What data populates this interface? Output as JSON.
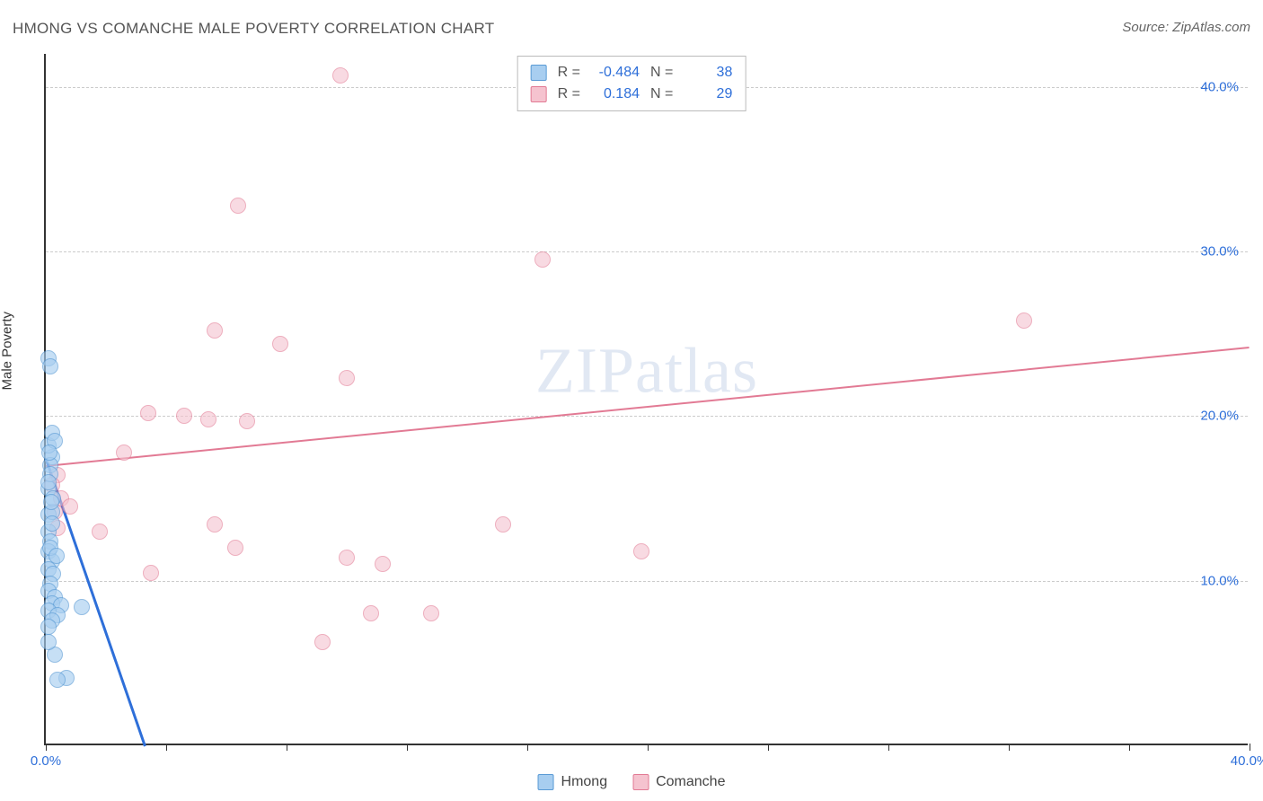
{
  "title": "HMONG VS COMANCHE MALE POVERTY CORRELATION CHART",
  "source_label": "Source:",
  "source_name": "ZipAtlas.com",
  "y_axis_label": "Male Poverty",
  "watermark_zip": "ZIP",
  "watermark_atlas": "atlas",
  "chart": {
    "type": "scatter",
    "background_color": "#ffffff",
    "grid_color": "#cccccc",
    "axis_color": "#333333",
    "tick_label_color": "#2e6fd9",
    "xlim": [
      0,
      40
    ],
    "ylim": [
      0,
      42
    ],
    "y_ticks": [
      10,
      20,
      30,
      40
    ],
    "y_tick_labels": [
      "10.0%",
      "20.0%",
      "30.0%",
      "40.0%"
    ],
    "x_ticks": [
      0,
      4,
      8,
      12,
      16,
      20,
      24,
      28,
      32,
      36,
      40
    ],
    "x_first_label": "0.0%",
    "x_last_label": "40.0%",
    "series": {
      "hmong": {
        "label": "Hmong",
        "fill_color": "#a8cef0",
        "stroke_color": "#5a9bd5",
        "fill_opacity": 0.65,
        "marker_radius": 9,
        "R": "-0.484",
        "N": "38",
        "trend": {
          "x1": 0,
          "y1": 17.5,
          "x2": 3.3,
          "y2": 0,
          "color": "#2e6fd9",
          "width": 3
        },
        "points": [
          [
            0.1,
            23.5
          ],
          [
            0.15,
            23.0
          ],
          [
            0.1,
            14.0
          ],
          [
            0.2,
            14.2
          ],
          [
            0.1,
            13.0
          ],
          [
            0.15,
            12.4
          ],
          [
            0.1,
            11.8
          ],
          [
            0.2,
            11.2
          ],
          [
            0.1,
            10.7
          ],
          [
            0.25,
            10.4
          ],
          [
            0.15,
            9.8
          ],
          [
            0.1,
            9.4
          ],
          [
            0.3,
            9.0
          ],
          [
            0.2,
            8.6
          ],
          [
            0.5,
            8.5
          ],
          [
            0.1,
            8.2
          ],
          [
            0.4,
            7.9
          ],
          [
            0.2,
            7.6
          ],
          [
            0.1,
            7.2
          ],
          [
            0.3,
            5.5
          ],
          [
            0.7,
            4.1
          ],
          [
            0.4,
            4.0
          ],
          [
            0.2,
            17.5
          ],
          [
            0.15,
            17.0
          ],
          [
            0.1,
            18.2
          ],
          [
            0.2,
            19.0
          ],
          [
            0.1,
            15.6
          ],
          [
            0.25,
            15.0
          ],
          [
            0.15,
            12.0
          ],
          [
            0.1,
            6.3
          ],
          [
            1.2,
            8.4
          ],
          [
            0.35,
            11.5
          ],
          [
            0.15,
            16.5
          ],
          [
            0.2,
            13.5
          ],
          [
            0.1,
            16.0
          ],
          [
            0.3,
            18.5
          ],
          [
            0.12,
            17.8
          ],
          [
            0.18,
            14.8
          ]
        ]
      },
      "comanche": {
        "label": "Comanche",
        "fill_color": "#f5c3cf",
        "stroke_color": "#e27a94",
        "fill_opacity": 0.6,
        "marker_radius": 9,
        "R": "0.184",
        "N": "29",
        "trend": {
          "x1": 0,
          "y1": 17.0,
          "x2": 40,
          "y2": 24.2,
          "color": "#e27a94",
          "width": 2
        },
        "points": [
          [
            9.8,
            40.7
          ],
          [
            6.4,
            32.8
          ],
          [
            16.5,
            29.5
          ],
          [
            5.6,
            25.2
          ],
          [
            7.8,
            24.4
          ],
          [
            32.5,
            25.8
          ],
          [
            10.0,
            22.3
          ],
          [
            3.4,
            20.2
          ],
          [
            4.6,
            20.0
          ],
          [
            5.4,
            19.8
          ],
          [
            6.7,
            19.7
          ],
          [
            2.6,
            17.8
          ],
          [
            0.4,
            16.4
          ],
          [
            0.2,
            15.8
          ],
          [
            0.5,
            15.0
          ],
          [
            0.8,
            14.5
          ],
          [
            0.3,
            14.2
          ],
          [
            1.8,
            13.0
          ],
          [
            5.6,
            13.4
          ],
          [
            6.3,
            12.0
          ],
          [
            10.0,
            11.4
          ],
          [
            11.2,
            11.0
          ],
          [
            15.2,
            13.4
          ],
          [
            3.5,
            10.5
          ],
          [
            19.8,
            11.8
          ],
          [
            10.8,
            8.0
          ],
          [
            12.8,
            8.0
          ],
          [
            9.2,
            6.3
          ],
          [
            0.4,
            13.2
          ]
        ]
      }
    },
    "legend_top": {
      "R_label": "R =",
      "N_label": "N ="
    }
  }
}
